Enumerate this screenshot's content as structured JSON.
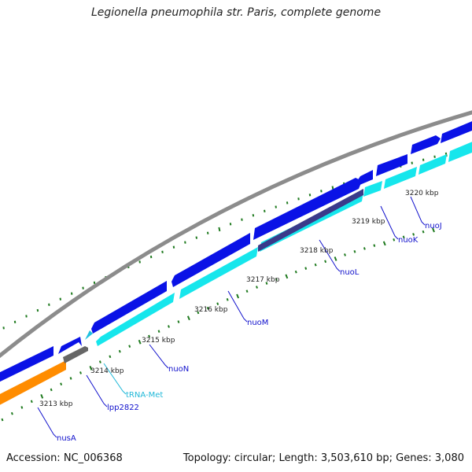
{
  "title": "Legionella pneumophila str. Paris, complete genome",
  "footer": {
    "accession": "Accession: NC_006368",
    "summary": "Topology: circular; Length: 3,503,610 bp; Genes: 3,080"
  },
  "colors": {
    "forward_gene": "#0a12e6",
    "reverse_gene": "#16e6ec",
    "backbone": "#8c8c8c",
    "ticks": "#1e7a1e",
    "nusA": "#ff8c00",
    "lpp2822": "#666666",
    "nuoL_overlay": "#3a3a8a",
    "trna": "#20c0e0"
  },
  "kbp_labels": [
    {
      "text": "3213 kbp",
      "pos": 3213
    },
    {
      "text": "3214 kbp",
      "pos": 3214
    },
    {
      "text": "3215 kbp",
      "pos": 3215
    },
    {
      "text": "3216 kbp",
      "pos": 3216
    },
    {
      "text": "3217 kbp",
      "pos": 3217
    },
    {
      "text": "3218 kbp",
      "pos": 3218
    },
    {
      "text": "3219 kbp",
      "pos": 3219
    },
    {
      "text": "3220 kbp",
      "pos": 3220
    }
  ],
  "gene_labels": [
    {
      "text": "nusA",
      "color": "#1010cc"
    },
    {
      "text": "lpp2822",
      "color": "#1010cc"
    },
    {
      "text": "tRNA-Met",
      "color": "#20b8d8"
    },
    {
      "text": "nuoN",
      "color": "#1010cc"
    },
    {
      "text": "nuoM",
      "color": "#1010cc"
    },
    {
      "text": "nuoL",
      "color": "#1010cc"
    },
    {
      "text": "nuoK",
      "color": "#1010cc"
    },
    {
      "text": "nuoJ",
      "color": "#1010cc"
    }
  ]
}
